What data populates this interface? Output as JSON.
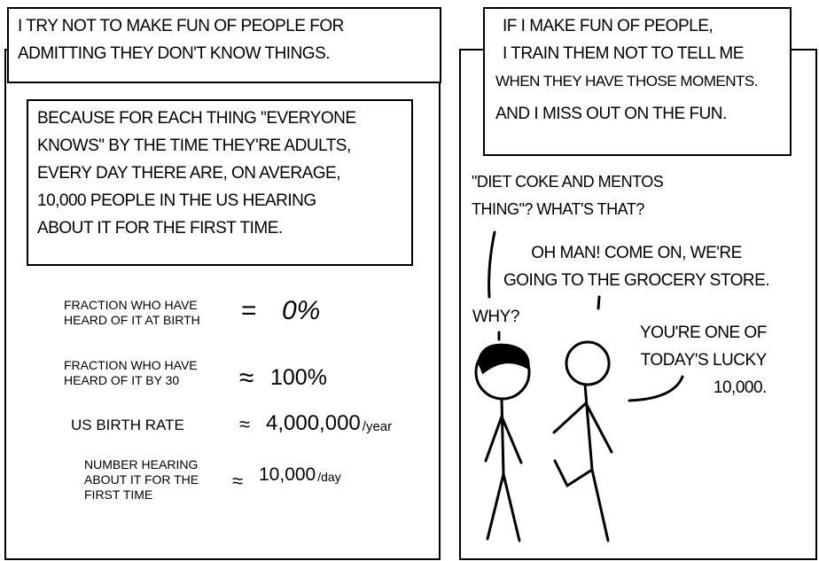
{
  "panel1": {
    "caption": [
      "I try not to make fun of people for",
      "admitting they don't know things."
    ],
    "explanation": [
      "Because for each thing \"everyone",
      "knows\" by the time they're adults,",
      "every day there are, on average,",
      "10,000 people in the US hearing",
      "about it for the first time."
    ],
    "equations": [
      {
        "label": [
          "Fraction who have",
          "heard of it at birth"
        ],
        "op": "=",
        "value": "0%"
      },
      {
        "label": [
          "Fraction who have",
          "heard of it by 30"
        ],
        "op": "≈",
        "value": "100%"
      },
      {
        "label": [
          "US birth rate"
        ],
        "op": "≈",
        "value": "4,000,000",
        "unit": "year"
      },
      {
        "label": [
          "Number hearing",
          "about it for the",
          "first time"
        ],
        "op": "≈",
        "value": "10,000",
        "unit": "day"
      }
    ]
  },
  "panel2": {
    "caption": [
      "If I make fun of people,",
      "I train them not to tell me",
      "when they have those moments.",
      "And I miss out on the fun."
    ],
    "dialogue": {
      "line1": [
        "\"Diet coke and mentos",
        "thing\"? What's that?"
      ],
      "line2": [
        "Oh man! Come on, we're",
        "going to the grocery store."
      ],
      "line3": "Why?",
      "line4": [
        "You're one of",
        "today's lucky",
        "10,000."
      ]
    }
  }
}
